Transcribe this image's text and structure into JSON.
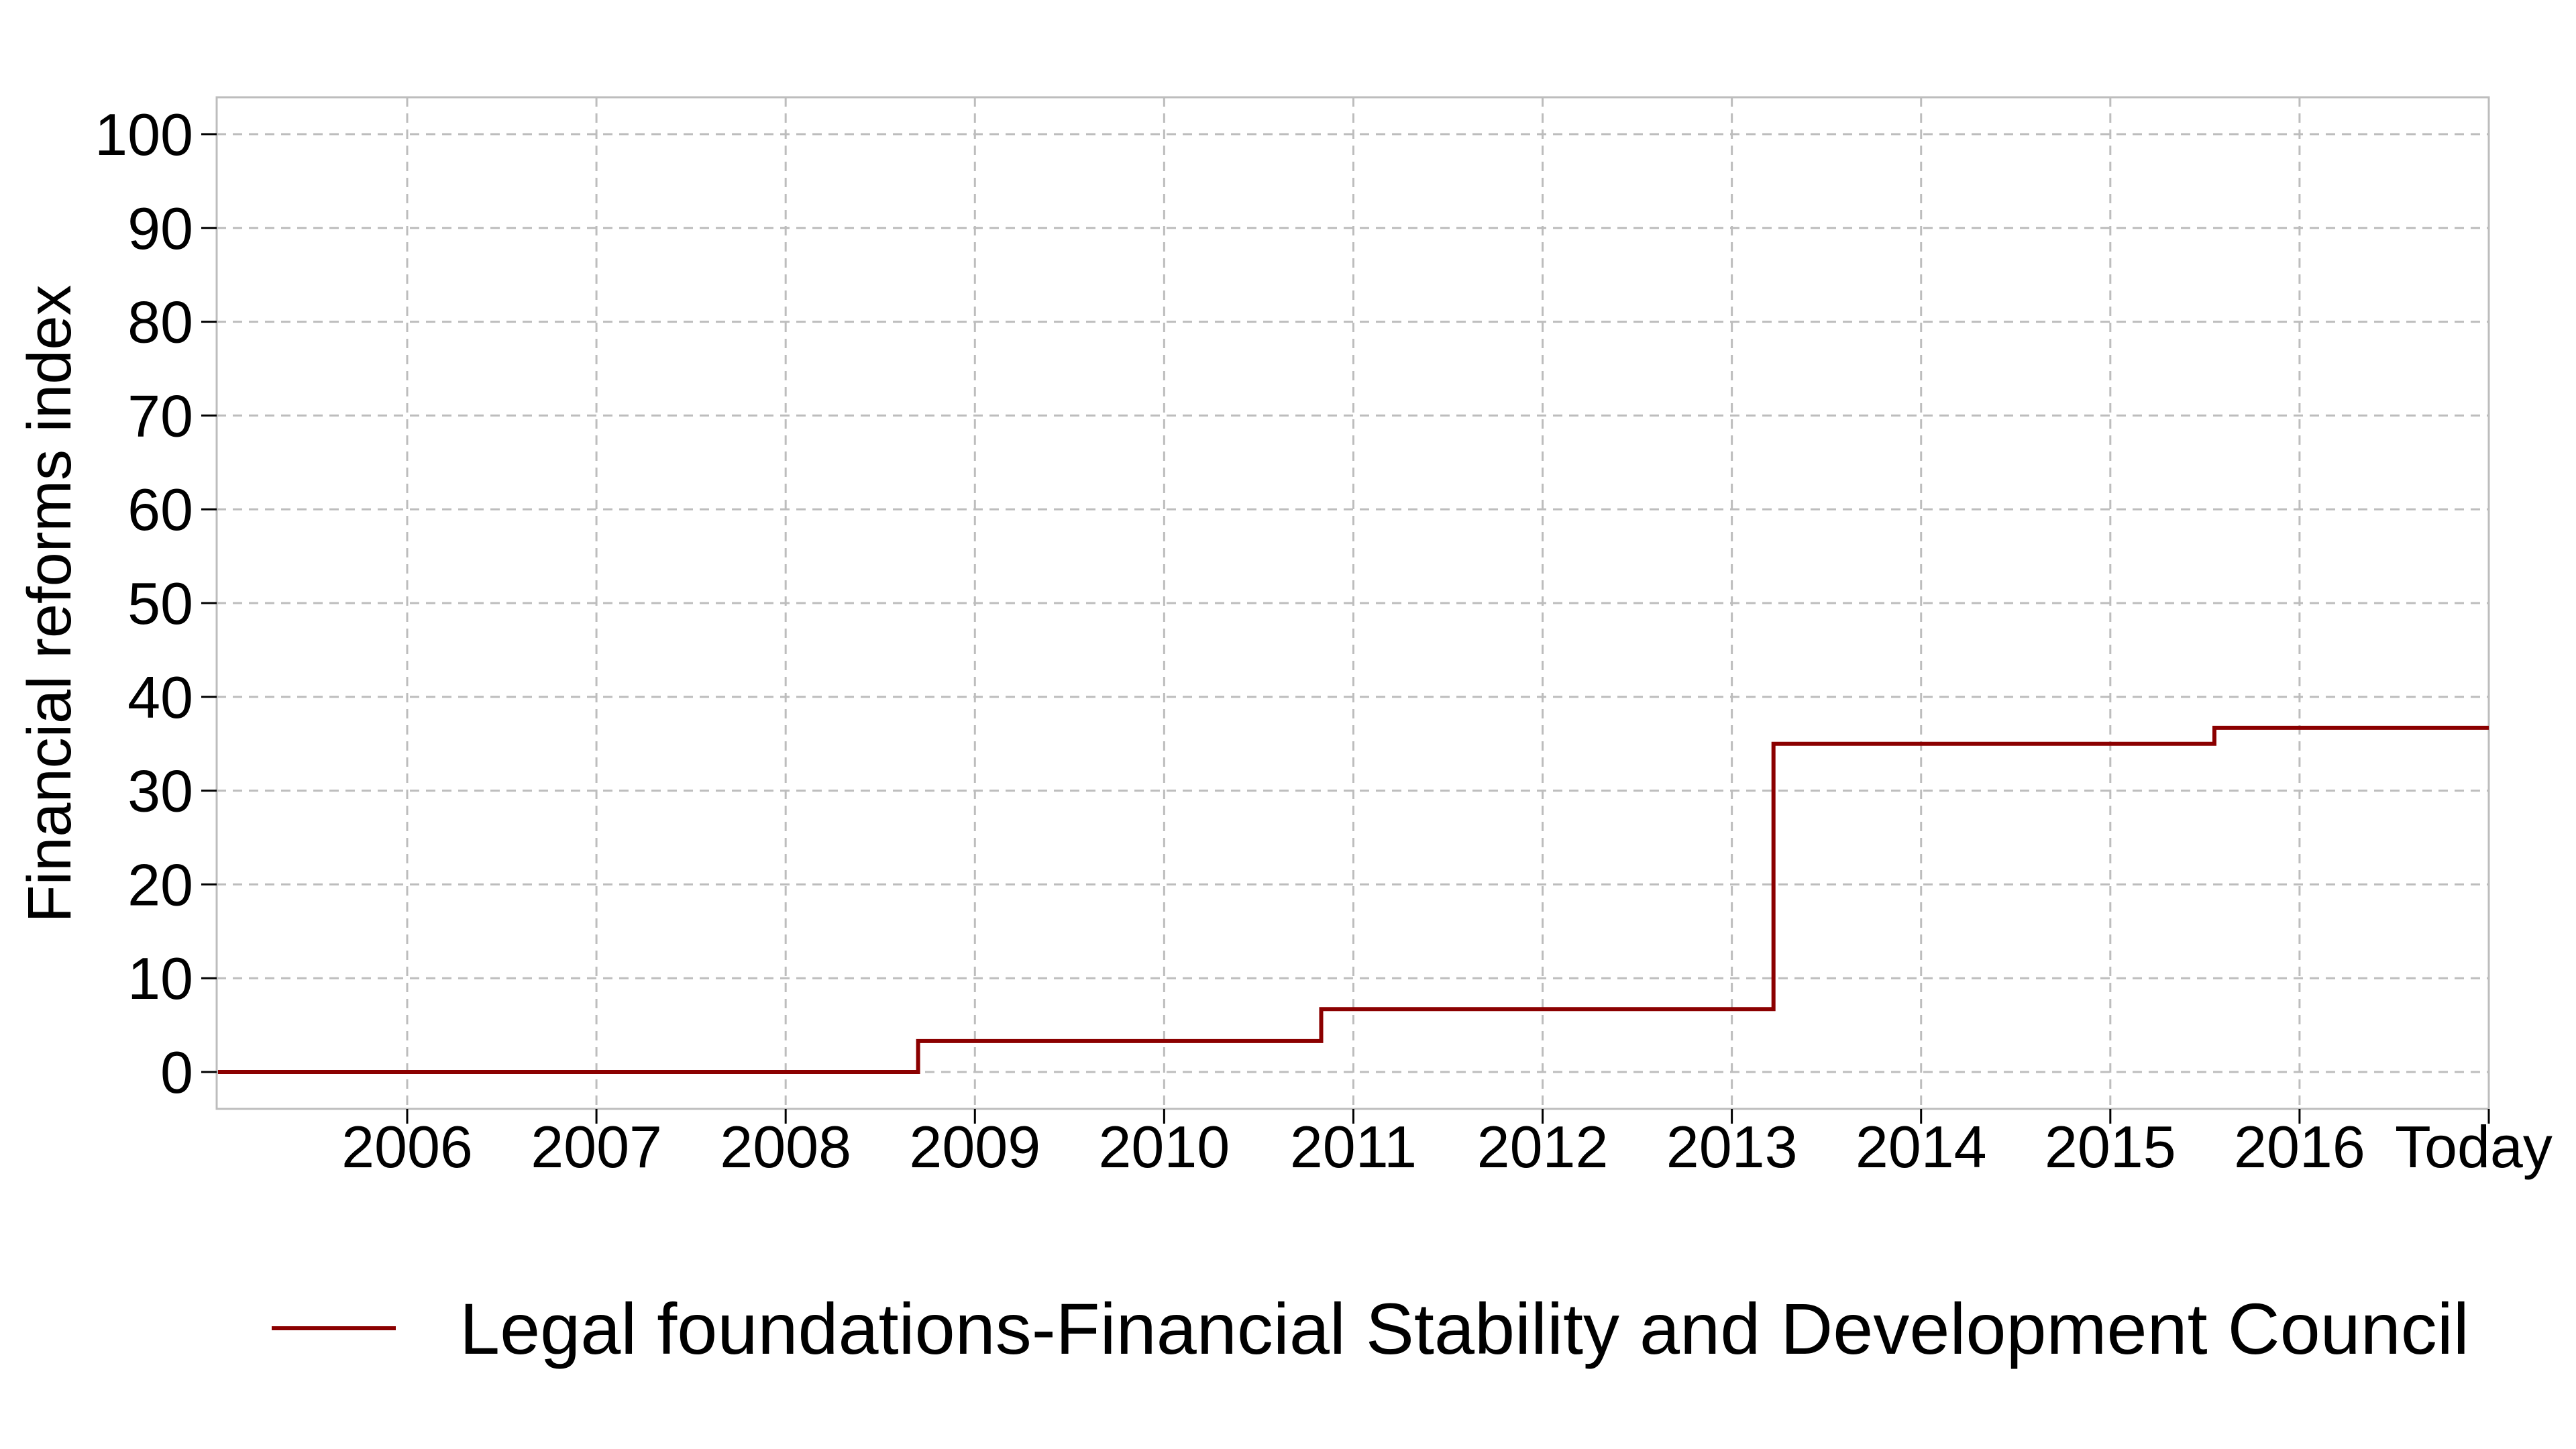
{
  "chart_data": {
    "type": "line",
    "step": true,
    "title": "",
    "xlabel": "",
    "ylabel": "Financial reforms index",
    "ylim": [
      0,
      100
    ],
    "yticks": [
      0,
      10,
      20,
      30,
      40,
      50,
      60,
      70,
      80,
      90,
      100
    ],
    "xlim": [
      2005,
      2017
    ],
    "xticks": [
      {
        "value": 2006,
        "label": "2006"
      },
      {
        "value": 2007,
        "label": "2007"
      },
      {
        "value": 2008,
        "label": "2008"
      },
      {
        "value": 2009,
        "label": "2009"
      },
      {
        "value": 2010,
        "label": "2010"
      },
      {
        "value": 2011,
        "label": "2011"
      },
      {
        "value": 2012,
        "label": "2012"
      },
      {
        "value": 2013,
        "label": "2013"
      },
      {
        "value": 2014,
        "label": "2014"
      },
      {
        "value": 2015,
        "label": "2015"
      },
      {
        "value": 2016,
        "label": "2016"
      },
      {
        "value": 2017,
        "label": "Today"
      }
    ],
    "grid": true,
    "legend_position": "bottom",
    "series": [
      {
        "name": "Legal foundations-Financial Stability and Development Council",
        "color": "#8b0000",
        "points": [
          {
            "x": 2005.0,
            "y": 0
          },
          {
            "x": 2008.7,
            "y": 0
          },
          {
            "x": 2008.7,
            "y": 3.3
          },
          {
            "x": 2010.83,
            "y": 3.3
          },
          {
            "x": 2010.83,
            "y": 6.7
          },
          {
            "x": 2013.22,
            "y": 6.7
          },
          {
            "x": 2013.22,
            "y": 35
          },
          {
            "x": 2015.55,
            "y": 35
          },
          {
            "x": 2015.55,
            "y": 36.7
          },
          {
            "x": 2017.0,
            "y": 36.7
          }
        ]
      }
    ]
  }
}
